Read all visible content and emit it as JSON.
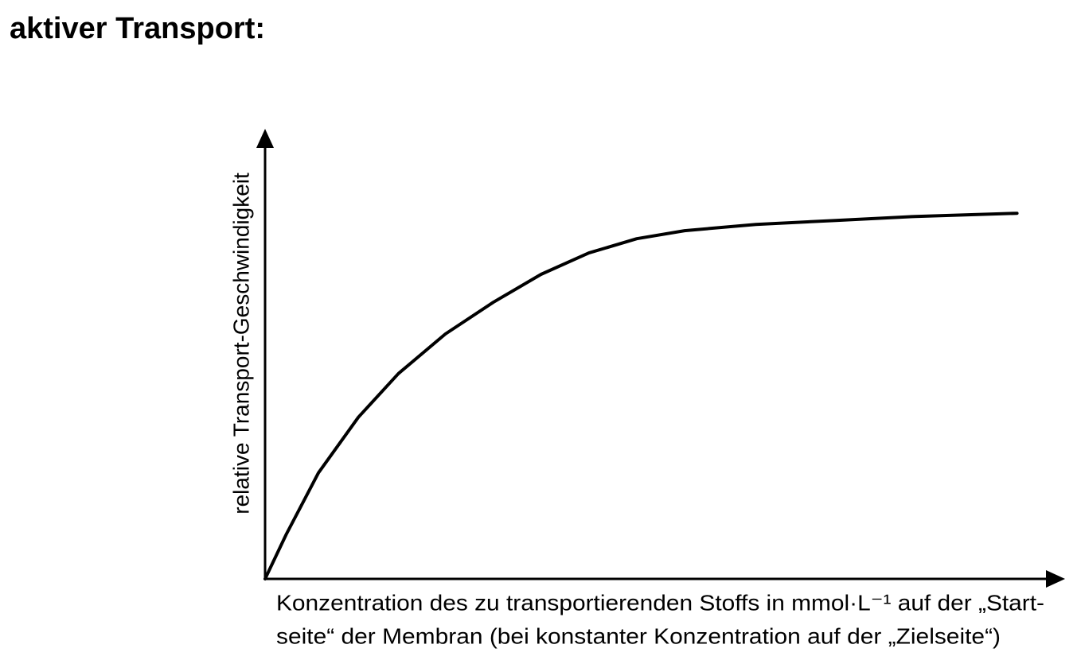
{
  "chart_data": {
    "type": "line",
    "title": "aktiver Transport:",
    "y_label": "relative Transport-Geschwindigkeit",
    "x_label": [
      "Konzentration des zu transportierenden Stoffs in mmol·L⁻¹ auf der „Start-",
      "seite“ der Membran (bei konstanter Konzentration auf der „Zielseite“)"
    ],
    "x": [
      0,
      2.7,
      6.8,
      11.9,
      17.0,
      23.0,
      29.1,
      35.2,
      41.3,
      47.4,
      53.5,
      62.6,
      72.8,
      82.9,
      95.9
    ],
    "values": [
      0,
      10,
      23.8,
      36.3,
      46.1,
      55.0,
      62.1,
      68.4,
      73.2,
      76.4,
      78.2,
      79.6,
      80.5,
      81.4,
      82.1
    ],
    "color": "#000000",
    "xlim": [
      0,
      100
    ],
    "ylim": [
      0,
      100
    ]
  }
}
